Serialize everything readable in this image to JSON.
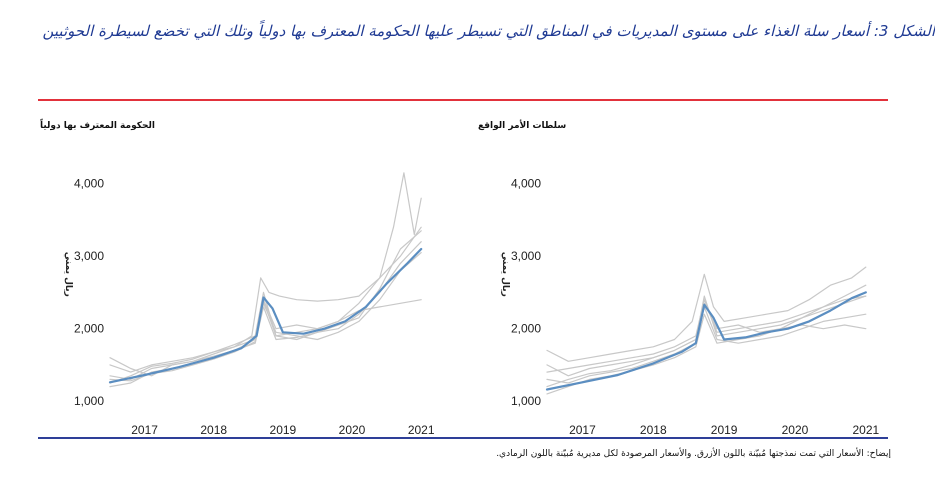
{
  "figure": {
    "title": "الشكل 3: أسعار سلة الغذاء على مستوى المديريات في المناطق التي تسيطر عليها الحكومة المعترف بها دولياً وتلك التي تخضع لسيطرة الحوثيين",
    "footnote": "إيضاح: الأسعار التي تمت نمذجتها مُبيّنة باللون الأزرق. والأسعار المرصودة لكل مديرية مُبيّنة باللون الرمادي."
  },
  "colors": {
    "title": "#1f3a93",
    "top_rule": "#e2313b",
    "bottom_rule": "#2e3f98",
    "modeled": "#5b8ec1",
    "observed": "#c8c8c8"
  },
  "chart_data": [
    {
      "type": "line",
      "title": "الحكومة المعترف بها دولياً",
      "ylabel": "ريال يمني",
      "xlabel": "",
      "xlim": [
        2016.5,
        2021.2
      ],
      "ylim": [
        850,
        4300
      ],
      "xticks": [
        2017,
        2018,
        2019,
        2020,
        2021
      ],
      "xtick_labels": [
        "2017",
        "2018",
        "2019",
        "2020",
        "2021"
      ],
      "yticks": [
        1000,
        2000,
        3000,
        4000
      ],
      "ytick_labels": [
        "1,000",
        "2,000",
        "3,000",
        "4,000"
      ],
      "grid": false,
      "series": [
        {
          "role": "modeled",
          "x": [
            2016.5,
            2017.0,
            2017.5,
            2018.0,
            2018.4,
            2018.62,
            2018.72,
            2018.85,
            2019.0,
            2019.3,
            2019.6,
            2019.9,
            2020.2,
            2020.5,
            2020.8,
            2021.0
          ],
          "y": [
            1260,
            1360,
            1470,
            1600,
            1730,
            1900,
            2430,
            2280,
            1950,
            1930,
            2000,
            2100,
            2300,
            2620,
            2900,
            3100
          ]
        },
        {
          "role": "observed",
          "x": [
            2016.5,
            2016.8,
            2017.1,
            2017.4,
            2017.7,
            2018.0,
            2018.3,
            2018.55,
            2018.68,
            2018.8,
            2018.95,
            2019.2,
            2019.5,
            2019.8,
            2020.1,
            2020.4,
            2020.6,
            2020.75,
            2020.9,
            2021.0
          ],
          "y": [
            1500,
            1400,
            1500,
            1550,
            1600,
            1680,
            1750,
            1900,
            2700,
            2500,
            2450,
            2400,
            2380,
            2400,
            2450,
            2700,
            3400,
            4150,
            3300,
            3800
          ]
        },
        {
          "role": "observed",
          "x": [
            2016.5,
            2016.8,
            2017.1,
            2017.4,
            2017.7,
            2018.0,
            2018.3,
            2018.6,
            2018.72,
            2018.9,
            2019.2,
            2019.5,
            2019.8,
            2020.1,
            2020.4,
            2020.7,
            2021.0
          ],
          "y": [
            1350,
            1300,
            1450,
            1500,
            1550,
            1620,
            1700,
            1850,
            2380,
            1900,
            1950,
            2000,
            2100,
            2350,
            2700,
            3000,
            3400
          ]
        },
        {
          "role": "observed",
          "x": [
            2016.5,
            2016.8,
            2017.1,
            2017.4,
            2017.7,
            2018.0,
            2018.3,
            2018.6,
            2018.72,
            2018.9,
            2019.2,
            2019.5,
            2019.8,
            2020.1,
            2020.4,
            2020.7,
            2021.0
          ],
          "y": [
            1200,
            1250,
            1400,
            1450,
            1520,
            1600,
            1700,
            1800,
            2300,
            1850,
            1880,
            1950,
            2000,
            2200,
            2500,
            2900,
            3200
          ]
        },
        {
          "role": "observed",
          "x": [
            2016.5,
            2016.8,
            2017.1,
            2017.4,
            2017.7,
            2018.0,
            2018.3,
            2018.6,
            2018.72,
            2018.9,
            2019.2,
            2019.5,
            2019.8,
            2020.1,
            2020.4,
            2020.7,
            2021.0
          ],
          "y": [
            1600,
            1450,
            1350,
            1500,
            1550,
            1650,
            1750,
            1850,
            2400,
            2000,
            2050,
            2000,
            2100,
            2250,
            2300,
            2350,
            2400
          ]
        },
        {
          "role": "observed",
          "x": [
            2016.5,
            2016.8,
            2017.1,
            2017.4,
            2017.7,
            2018.0,
            2018.3,
            2018.6,
            2018.72,
            2018.9,
            2019.2,
            2019.5,
            2019.8,
            2020.1,
            2020.4,
            2020.7,
            2021.0
          ],
          "y": [
            1250,
            1350,
            1480,
            1520,
            1580,
            1680,
            1780,
            1900,
            2500,
            1900,
            1850,
            1950,
            2050,
            2150,
            2550,
            3100,
            3350
          ]
        },
        {
          "role": "observed",
          "x": [
            2016.5,
            2016.8,
            2017.1,
            2017.4,
            2017.7,
            2018.0,
            2018.3,
            2018.6,
            2018.72,
            2018.9,
            2019.2,
            2019.5,
            2019.8,
            2020.1,
            2020.4,
            2020.7,
            2021.0
          ],
          "y": [
            1300,
            1280,
            1380,
            1420,
            1500,
            1580,
            1680,
            1820,
            2350,
            1950,
            1900,
            1850,
            1950,
            2100,
            2400,
            2800,
            3050
          ]
        }
      ]
    },
    {
      "type": "line",
      "title": "سلطات الأمر الواقع",
      "ylabel": "ريال يمني",
      "xlabel": "",
      "xlim": [
        2016.5,
        2021.2
      ],
      "ylim": [
        850,
        4300
      ],
      "xticks": [
        2017,
        2018,
        2019,
        2020,
        2021
      ],
      "xtick_labels": [
        "2017",
        "2018",
        "2019",
        "2020",
        "2021"
      ],
      "yticks": [
        1000,
        2000,
        3000,
        4000
      ],
      "ytick_labels": [
        "1,000",
        "2,000",
        "3,000",
        "4,000"
      ],
      "grid": false,
      "series": [
        {
          "role": "modeled",
          "x": [
            2016.5,
            2017.0,
            2017.5,
            2018.0,
            2018.4,
            2018.6,
            2018.72,
            2018.85,
            2019.0,
            2019.3,
            2019.6,
            2019.9,
            2020.2,
            2020.5,
            2020.8,
            2021.0
          ],
          "y": [
            1160,
            1260,
            1360,
            1520,
            1680,
            1800,
            2330,
            2150,
            1850,
            1880,
            1950,
            2000,
            2100,
            2250,
            2420,
            2500
          ]
        },
        {
          "role": "observed",
          "x": [
            2016.5,
            2016.8,
            2017.1,
            2017.4,
            2017.7,
            2018.0,
            2018.3,
            2018.55,
            2018.72,
            2018.85,
            2019.0,
            2019.3,
            2019.6,
            2019.9,
            2020.2,
            2020.5,
            2020.8,
            2021.0
          ],
          "y": [
            1700,
            1550,
            1600,
            1650,
            1700,
            1750,
            1850,
            2100,
            2750,
            2300,
            2100,
            2150,
            2200,
            2250,
            2400,
            2600,
            2700,
            2850
          ]
        },
        {
          "role": "observed",
          "x": [
            2016.5,
            2016.8,
            2017.1,
            2017.4,
            2017.7,
            2018.0,
            2018.3,
            2018.6,
            2018.72,
            2018.9,
            2019.2,
            2019.5,
            2019.8,
            2020.1,
            2020.4,
            2020.7,
            2021.0
          ],
          "y": [
            1400,
            1450,
            1500,
            1550,
            1600,
            1650,
            1750,
            1900,
            2400,
            1950,
            2000,
            2050,
            2100,
            2200,
            2300,
            2450,
            2600
          ]
        },
        {
          "role": "observed",
          "x": [
            2016.5,
            2016.8,
            2017.1,
            2017.4,
            2017.7,
            2018.0,
            2018.3,
            2018.6,
            2018.72,
            2018.9,
            2019.2,
            2019.5,
            2019.8,
            2020.1,
            2020.4,
            2020.7,
            2021.0
          ],
          "y": [
            1300,
            1250,
            1350,
            1400,
            1450,
            1550,
            1650,
            1800,
            2300,
            1850,
            1800,
            1850,
            1900,
            2000,
            2100,
            2150,
            2200
          ]
        },
        {
          "role": "observed",
          "x": [
            2016.5,
            2016.8,
            2017.1,
            2017.4,
            2017.7,
            2018.0,
            2018.3,
            2018.6,
            2018.72,
            2018.9,
            2019.2,
            2019.5,
            2019.8,
            2020.1,
            2020.4,
            2020.7,
            2021.0
          ],
          "y": [
            1200,
            1300,
            1380,
            1420,
            1500,
            1600,
            1700,
            1850,
            2350,
            2000,
            2050,
            1950,
            2000,
            2050,
            2000,
            2050,
            2000
          ]
        },
        {
          "role": "observed",
          "x": [
            2016.5,
            2016.8,
            2017.1,
            2017.4,
            2017.7,
            2018.0,
            2018.3,
            2018.6,
            2018.72,
            2018.9,
            2019.2,
            2019.5,
            2019.8,
            2020.1,
            2020.4,
            2020.7,
            2021.0
          ],
          "y": [
            1100,
            1200,
            1300,
            1350,
            1420,
            1500,
            1600,
            1750,
            2200,
            1800,
            1850,
            1900,
            2000,
            2150,
            2300,
            2400,
            2450
          ]
        },
        {
          "role": "observed",
          "x": [
            2016.5,
            2016.8,
            2017.1,
            2017.4,
            2017.7,
            2018.0,
            2018.3,
            2018.6,
            2018.72,
            2018.9,
            2019.2,
            2019.5,
            2019.8,
            2020.1,
            2020.4,
            2020.7,
            2021.0
          ],
          "y": [
            1500,
            1350,
            1450,
            1500,
            1550,
            1600,
            1700,
            1850,
            2450,
            1900,
            1950,
            2000,
            2050,
            2150,
            2250,
            2350,
            2450
          ]
        }
      ]
    }
  ]
}
